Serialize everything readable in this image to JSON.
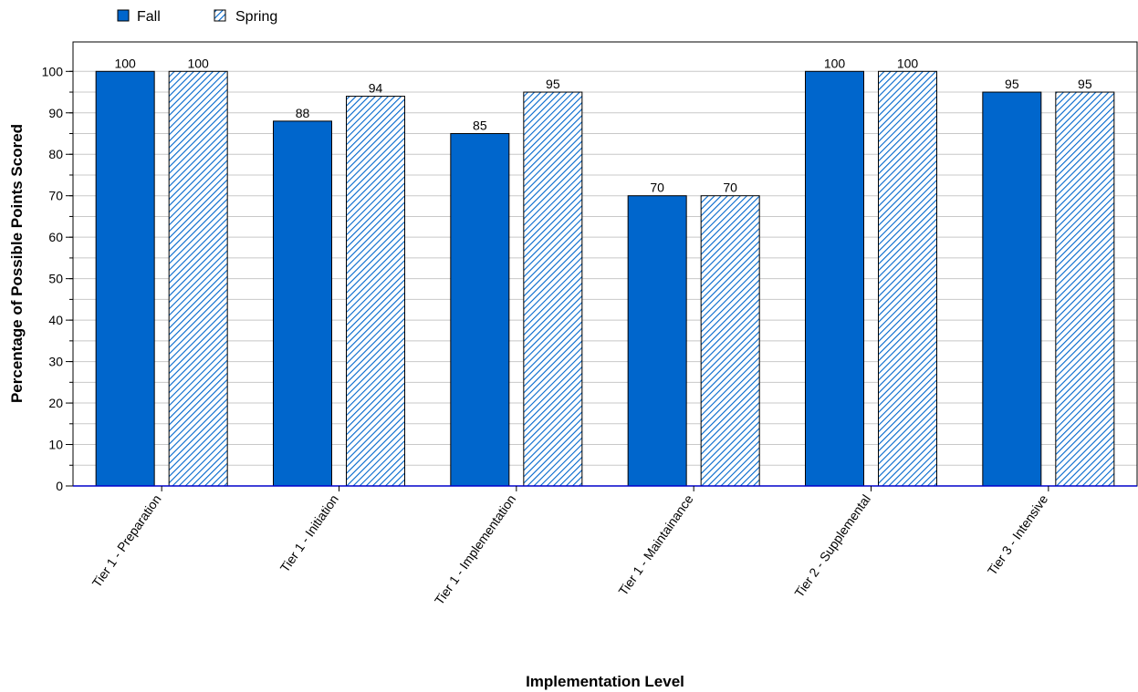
{
  "chart_data": {
    "type": "bar",
    "categories": [
      "Tier 1 - Preparation",
      "Tier 1 - Initiation",
      "Tier 1 - Implementation",
      "Tier 1 - Maintainance",
      "Tier 2 - Supplemental",
      "Tier 3 - Intensive"
    ],
    "series": [
      {
        "name": "Fall",
        "values": [
          100,
          88,
          85,
          70,
          100,
          95
        ],
        "color": "#0066cc",
        "pattern": "solid"
      },
      {
        "name": "Spring",
        "values": [
          100,
          94,
          95,
          70,
          100,
          95
        ],
        "color": "#0066cc",
        "pattern": "diagonal-hatch"
      }
    ],
    "title": "",
    "xlabel": "Implementation Level",
    "ylabel": "Percentage of Possible Points Scored",
    "ylim": [
      0,
      100
    ],
    "yticks": [
      0,
      10,
      20,
      30,
      40,
      50,
      60,
      70,
      80,
      90,
      100
    ],
    "grid": true,
    "legend_position": "top-left"
  }
}
